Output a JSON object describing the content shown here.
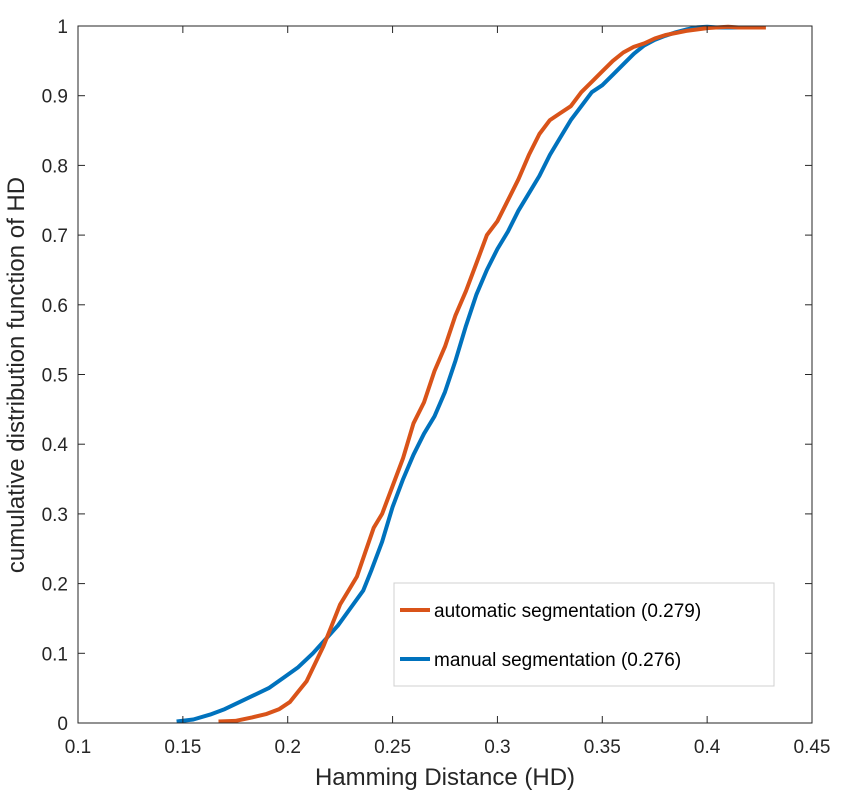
{
  "chart_data": {
    "type": "line",
    "xlabel": "Hamming Distance (HD)",
    "ylabel": "cumulative distribution function of HD",
    "xlim": [
      0.1,
      0.45
    ],
    "ylim": [
      0,
      1
    ],
    "xticks": [
      0.1,
      0.15,
      0.2,
      0.25,
      0.3,
      0.35,
      0.4,
      0.45
    ],
    "xtick_labels": [
      "0.1",
      "0.15",
      "0.2",
      "0.25",
      "0.3",
      "0.35",
      "0.4",
      "0.45"
    ],
    "yticks": [
      0,
      0.1,
      0.2,
      0.3,
      0.4,
      0.5,
      0.6,
      0.7,
      0.8,
      0.9,
      1
    ],
    "ytick_labels": [
      "0",
      "0.1",
      "0.2",
      "0.3",
      "0.4",
      "0.5",
      "0.6",
      "0.7",
      "0.8",
      "0.9",
      "1"
    ],
    "grid": false,
    "legend_position": "bottom-right",
    "series": [
      {
        "name": "automatic segmentation (0.279)",
        "color": "#D95319",
        "x": [
          0.167,
          0.175,
          0.183,
          0.19,
          0.196,
          0.201,
          0.205,
          0.209,
          0.213,
          0.217,
          0.221,
          0.225,
          0.229,
          0.233,
          0.237,
          0.241,
          0.245,
          0.25,
          0.255,
          0.26,
          0.265,
          0.27,
          0.275,
          0.28,
          0.285,
          0.29,
          0.295,
          0.3,
          0.305,
          0.31,
          0.315,
          0.32,
          0.325,
          0.33,
          0.335,
          0.34,
          0.345,
          0.35,
          0.355,
          0.36,
          0.365,
          0.37,
          0.375,
          0.38,
          0.385,
          0.39,
          0.395,
          0.4,
          0.405,
          0.41,
          0.415,
          0.42,
          0.428
        ],
        "y": [
          0.0,
          0.003,
          0.008,
          0.013,
          0.02,
          0.03,
          0.045,
          0.06,
          0.085,
          0.11,
          0.14,
          0.17,
          0.19,
          0.21,
          0.245,
          0.28,
          0.3,
          0.34,
          0.38,
          0.43,
          0.46,
          0.505,
          0.54,
          0.585,
          0.62,
          0.66,
          0.7,
          0.72,
          0.75,
          0.78,
          0.815,
          0.845,
          0.865,
          0.875,
          0.885,
          0.905,
          0.92,
          0.935,
          0.95,
          0.962,
          0.97,
          0.975,
          0.982,
          0.987,
          0.99,
          0.993,
          0.995,
          0.997,
          0.998,
          0.999,
          1.0,
          1.0,
          1.0
        ]
      },
      {
        "name": "manual segmentation (0.276)",
        "color": "#0072BD",
        "x": [
          0.147,
          0.155,
          0.163,
          0.17,
          0.177,
          0.184,
          0.191,
          0.198,
          0.205,
          0.212,
          0.218,
          0.224,
          0.23,
          0.236,
          0.24,
          0.245,
          0.25,
          0.255,
          0.26,
          0.265,
          0.27,
          0.275,
          0.28,
          0.285,
          0.29,
          0.295,
          0.3,
          0.305,
          0.31,
          0.315,
          0.32,
          0.325,
          0.33,
          0.335,
          0.34,
          0.345,
          0.35,
          0.355,
          0.36,
          0.365,
          0.37,
          0.375,
          0.38,
          0.385,
          0.39,
          0.395,
          0.4,
          0.405,
          0.41,
          0.415
        ],
        "y": [
          0.0,
          0.005,
          0.012,
          0.02,
          0.03,
          0.04,
          0.05,
          0.065,
          0.08,
          0.1,
          0.12,
          0.14,
          0.165,
          0.19,
          0.22,
          0.26,
          0.31,
          0.35,
          0.385,
          0.415,
          0.44,
          0.475,
          0.52,
          0.57,
          0.615,
          0.65,
          0.68,
          0.705,
          0.735,
          0.76,
          0.785,
          0.815,
          0.84,
          0.865,
          0.885,
          0.905,
          0.915,
          0.93,
          0.945,
          0.96,
          0.972,
          0.98,
          0.986,
          0.991,
          0.995,
          0.998,
          0.999,
          1.0,
          1.0,
          1.0
        ]
      }
    ]
  }
}
